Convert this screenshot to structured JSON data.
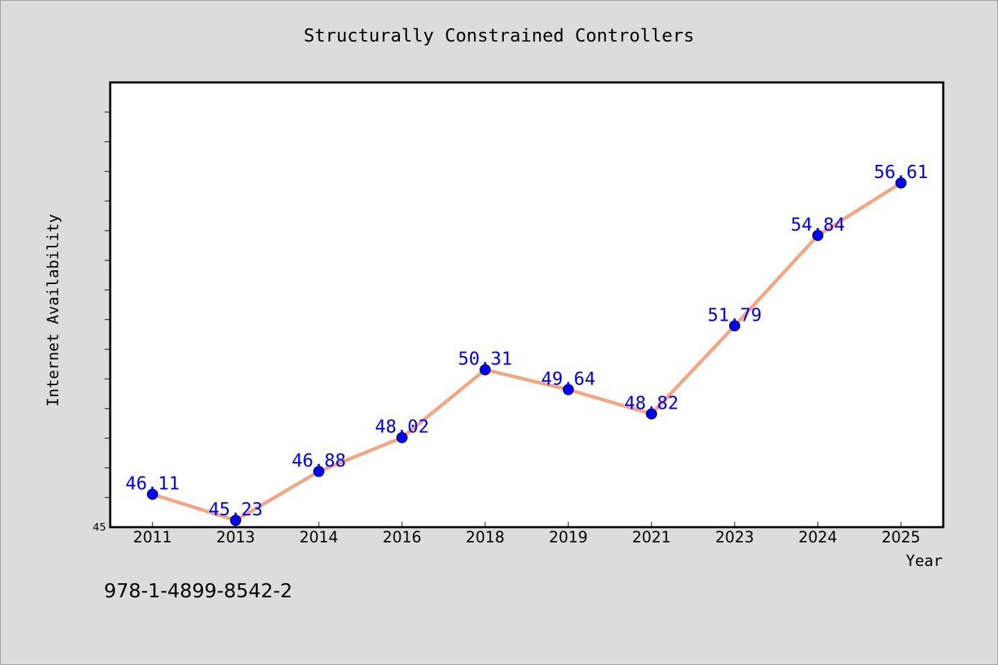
{
  "chart_data": {
    "type": "line",
    "title": "Structurally Constrained Controllers",
    "xlabel": "Year",
    "ylabel": "Internet Availability",
    "categories": [
      "2011",
      "2013",
      "2014",
      "2016",
      "2018",
      "2019",
      "2021",
      "2023",
      "2024",
      "2025"
    ],
    "values": [
      46.11,
      45.23,
      46.88,
      48.02,
      50.31,
      49.64,
      48.82,
      51.79,
      54.84,
      56.61
    ],
    "data_labels": [
      "46.11",
      "45.23",
      "46.88",
      "48.02",
      "50.31",
      "49.64",
      "48.82",
      "51.79",
      "54.84",
      "56.61"
    ],
    "ylim": [
      45,
      60
    ],
    "ytick_labels": [
      "45"
    ],
    "grid": false,
    "line_color": "#f4a582",
    "marker_color": "#0000ff",
    "label_color": "#0000ff",
    "background_color": "#dcdcdc",
    "plot_background": "#ffffff"
  },
  "footer": {
    "isbn": "978-1-4899-8542-2"
  }
}
